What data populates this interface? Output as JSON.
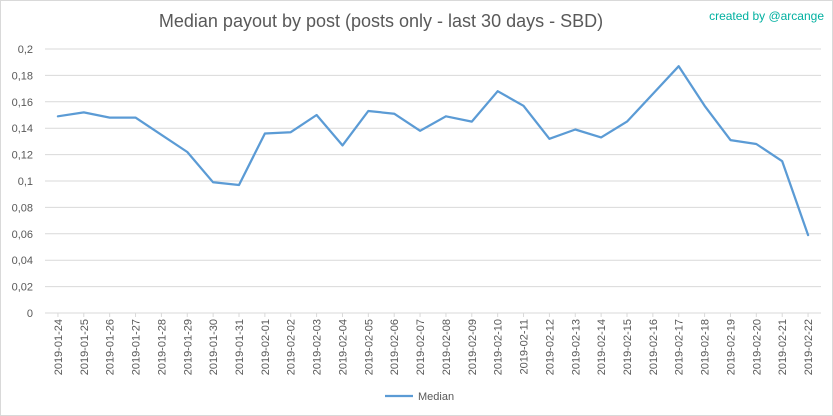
{
  "header": {
    "title": "Median payout by post (posts only - last 30 days - SBD)",
    "credit": "created by @arcange"
  },
  "chart_data": {
    "type": "line",
    "title": "Median payout by post (posts only - last 30 days - SBD)",
    "xlabel": "",
    "ylabel": "",
    "ylim": [
      0,
      0.2
    ],
    "yticks": [
      "0",
      "0,02",
      "0,04",
      "0,06",
      "0,08",
      "0,1",
      "0,12",
      "0,14",
      "0,16",
      "0,18",
      "0,2"
    ],
    "grid": true,
    "legend_position": "bottom",
    "categories": [
      "2019-01-24",
      "2019-01-25",
      "2019-01-26",
      "2019-01-27",
      "2019-01-28",
      "2019-01-29",
      "2019-01-30",
      "2019-01-31",
      "2019-02-01",
      "2019-02-02",
      "2019-02-03",
      "2019-02-04",
      "2019-02-05",
      "2019-02-06",
      "2019-02-07",
      "2019-02-08",
      "2019-02-09",
      "2019-02-10",
      "2019-02-11",
      "2019-02-12",
      "2019-02-13",
      "2019-02-14",
      "2019-02-15",
      "2019-02-16",
      "2019-02-17",
      "2019-02-18",
      "2019-02-19",
      "2019-02-20",
      "2019-02-21",
      "2019-02-22"
    ],
    "series": [
      {
        "name": "Median",
        "color": "#5b9bd5",
        "values": [
          0.149,
          0.152,
          0.148,
          0.148,
          0.135,
          0.122,
          0.099,
          0.097,
          0.136,
          0.137,
          0.15,
          0.127,
          0.153,
          0.151,
          0.138,
          0.149,
          0.145,
          0.168,
          0.157,
          0.132,
          0.139,
          0.133,
          0.145,
          0.166,
          0.187,
          0.157,
          0.131,
          0.128,
          0.115,
          0.059
        ]
      }
    ]
  }
}
